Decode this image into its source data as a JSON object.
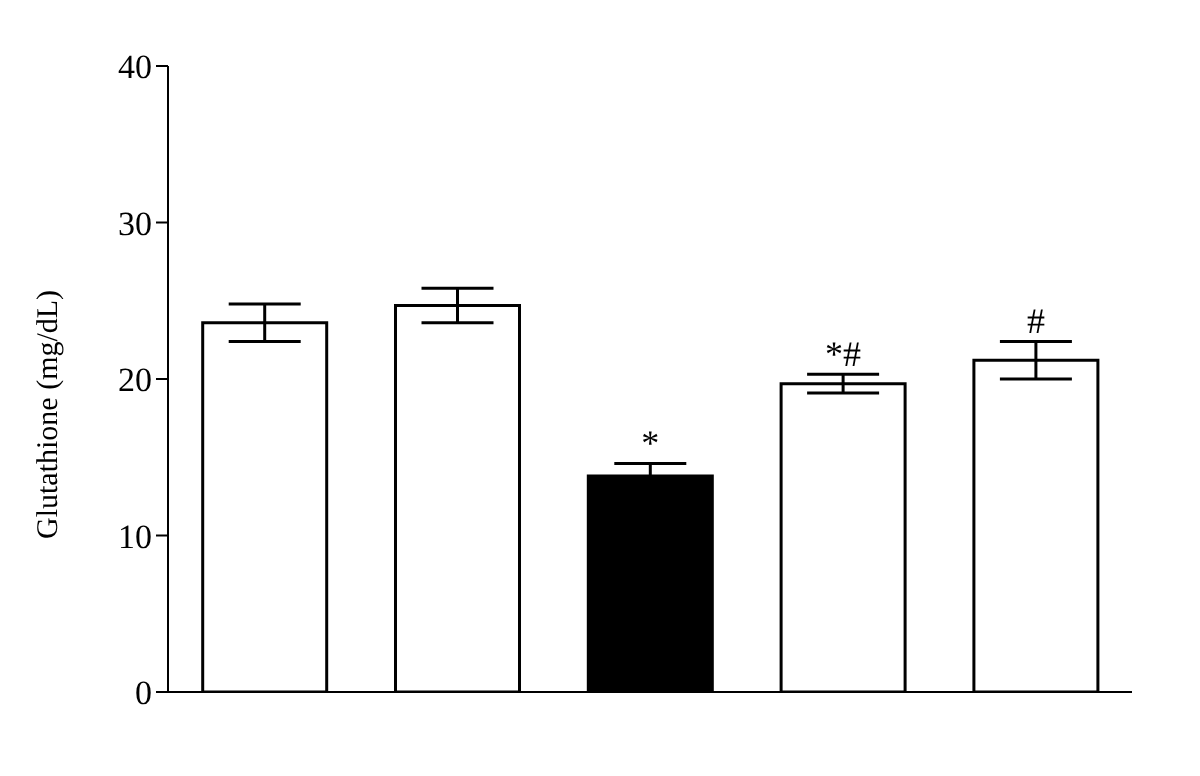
{
  "chart_data": {
    "type": "bar",
    "ylabel": "Glutathione (mg/dL)",
    "categories": [
      null,
      null,
      null,
      null,
      null
    ],
    "values": [
      23.6,
      24.7,
      13.8,
      19.7,
      21.2
    ],
    "errors": [
      1.2,
      1.1,
      0.8,
      0.6,
      1.2
    ],
    "value_labels": [
      null,
      null,
      "*",
      "*#",
      "#"
    ],
    "colors": [
      "#ffffff",
      "#ffffff",
      "#000000",
      "#ffffff",
      "#ffffff"
    ],
    "ylim": [
      0,
      40
    ],
    "yticks": [
      0,
      10,
      20,
      30,
      40
    ],
    "grid": false,
    "legend": false
  }
}
